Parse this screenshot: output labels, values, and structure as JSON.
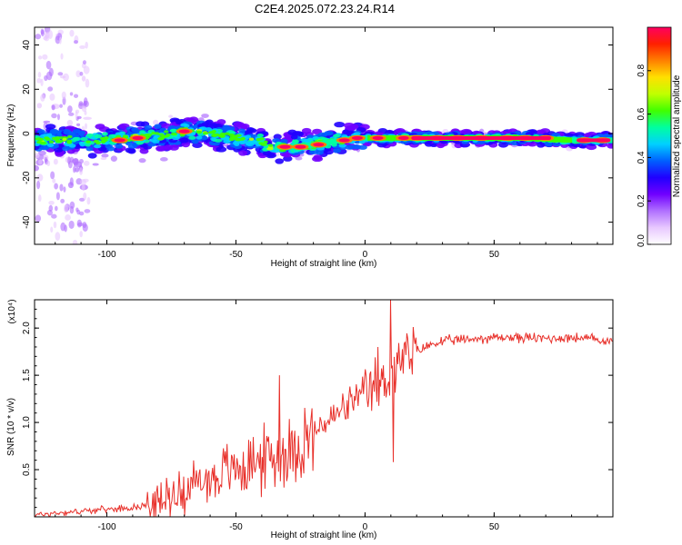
{
  "figure": {
    "title": "C2E4.2025.072.23.24.R14"
  },
  "chart_data": [
    {
      "type": "heatmap",
      "xlabel": "Height of straight line (km)",
      "ylabel": "Frequency (Hz)",
      "xlim": [
        -128,
        96
      ],
      "ylim": [
        -50,
        48
      ],
      "xticks": [
        -100,
        -50,
        0,
        50
      ],
      "yticks": [
        -40,
        -20,
        0,
        20,
        40
      ],
      "colorbar": {
        "label": "Normalized spectral amplitude",
        "range": [
          0,
          1
        ],
        "ticks": [
          0.0,
          0.2,
          0.4,
          0.6,
          0.8
        ],
        "tick_labels": [
          "0.0",
          "0.2",
          "0.4",
          "0.6",
          "0.8"
        ],
        "colormap": [
          "#ffffff",
          "#e8c8ff",
          "#b070ff",
          "#7000ff",
          "#2000ff",
          "#0060ff",
          "#00d0ff",
          "#00ffa0",
          "#40ff00",
          "#c0ff00",
          "#ffe000",
          "#ff8000",
          "#ff2000",
          "#ff0060"
        ]
      },
      "ridge": {
        "x": [
          -128,
          -120,
          -110,
          -100,
          -90,
          -80,
          -70,
          -60,
          -50,
          -40,
          -37,
          -30,
          -20,
          -10,
          -5,
          0,
          10,
          20,
          40,
          60,
          80,
          96
        ],
        "y": [
          -3,
          -3,
          -3,
          -3,
          -2,
          -1,
          1,
          0,
          -2,
          -3,
          -6,
          -6,
          -5,
          -3,
          -2,
          -2,
          -2,
          -2,
          -2,
          -2,
          -3,
          -3
        ]
      }
    },
    {
      "type": "line",
      "xlabel": "Height of straight line (km)",
      "ylabel": "SNR (10 * v/v)",
      "yexponent_label": "(x10⁴)",
      "xlim": [
        -128,
        96
      ],
      "ylim": [
        0,
        2.3
      ],
      "xticks": [
        -100,
        -50,
        0,
        50
      ],
      "yticks": [
        0.5,
        1.0,
        1.5,
        2.0
      ],
      "ytick_labels": [
        "0.5",
        "1.0",
        "1.5",
        "2.0"
      ],
      "color": "#e8302a",
      "series": [
        {
          "x": [
            -128,
            -120,
            -110,
            -100,
            -90,
            -80,
            -75,
            -70,
            -65,
            -60,
            -55,
            -50,
            -45,
            -40,
            -35,
            -33,
            -30,
            -25,
            -20,
            -15,
            -10,
            -5,
            0,
            3,
            6,
            8,
            10,
            12,
            15,
            20,
            25,
            30,
            40,
            50,
            60,
            70,
            80,
            90,
            96
          ],
          "y": [
            0.02,
            0.04,
            0.06,
            0.08,
            0.1,
            0.15,
            0.22,
            0.3,
            0.36,
            0.4,
            0.46,
            0.52,
            0.56,
            0.6,
            0.64,
            0.66,
            0.7,
            0.78,
            0.88,
            1.0,
            1.1,
            1.22,
            1.3,
            1.36,
            1.4,
            1.45,
            1.55,
            1.6,
            1.66,
            1.75,
            1.82,
            1.86,
            1.88,
            1.9,
            1.9,
            1.89,
            1.9,
            1.88,
            1.85
          ]
        }
      ],
      "spikes": [
        {
          "x": -33,
          "y": 1.5
        },
        {
          "x": 10,
          "y": 2.3
        },
        {
          "x": 5,
          "y": 1.8
        },
        {
          "x": 11,
          "y": 0.58
        }
      ]
    }
  ]
}
